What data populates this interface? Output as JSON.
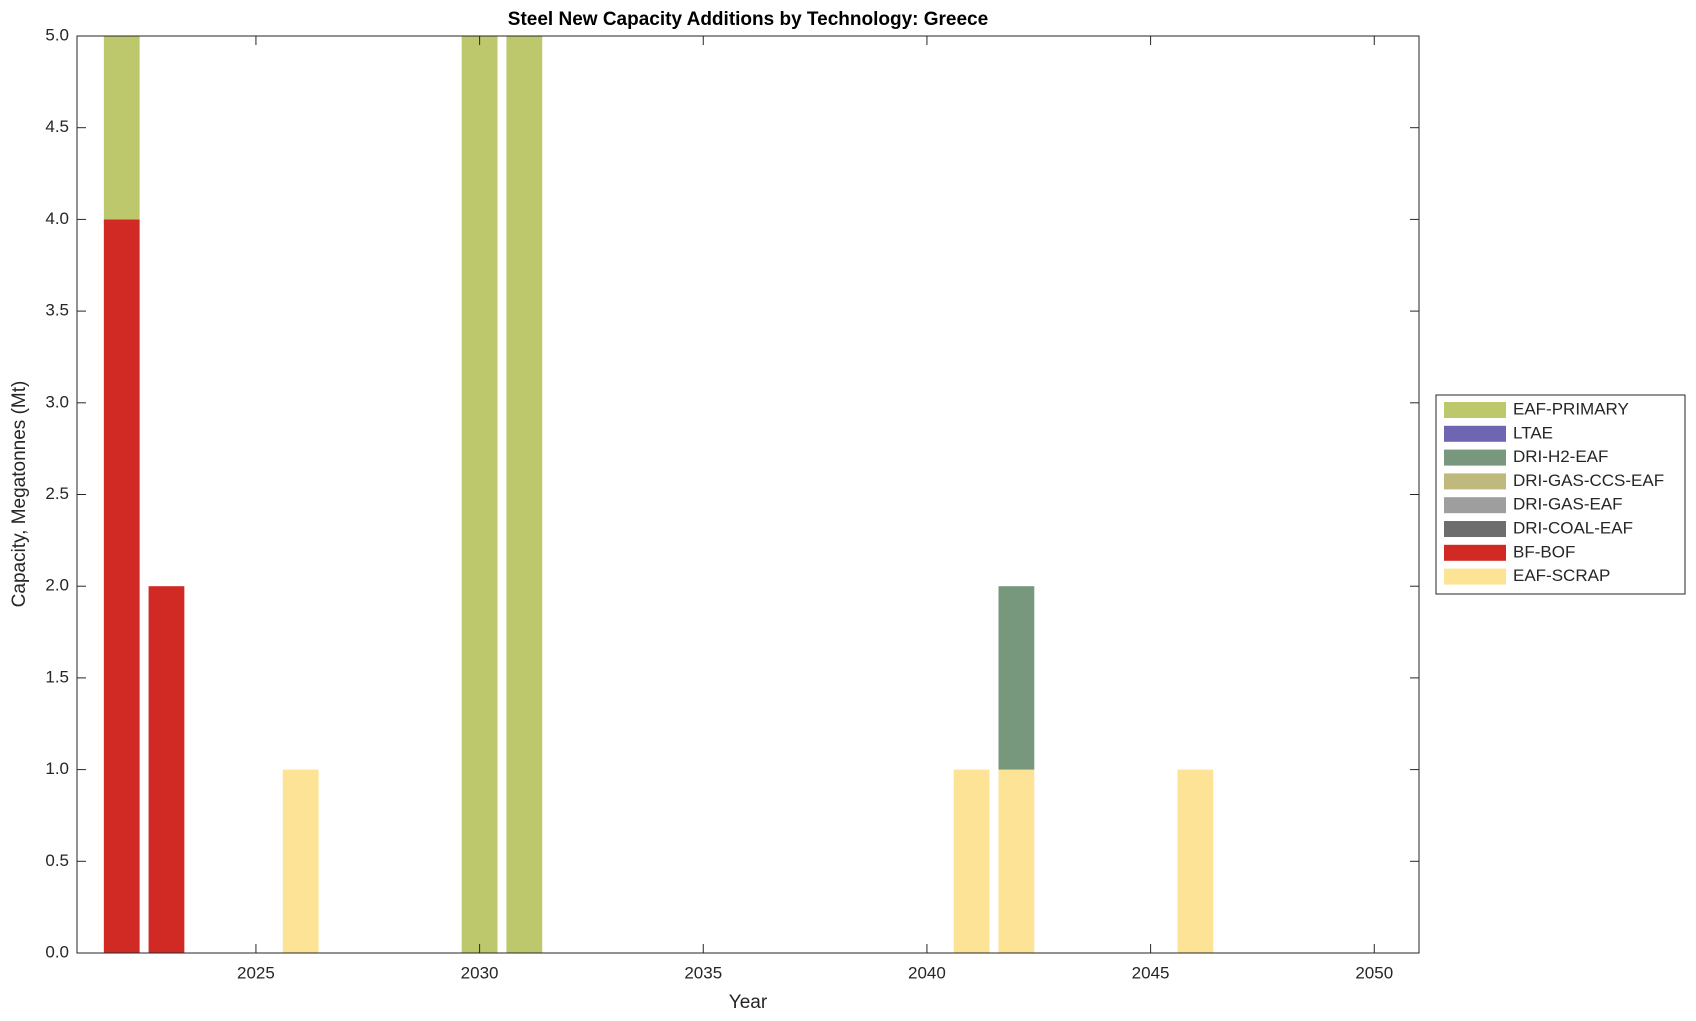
{
  "chart_data": {
    "type": "bar",
    "stacked": true,
    "title": "Steel New Capacity Additions by Technology: Greece",
    "x_label": "Year",
    "y_label": "Capacity, Megatonnes (Mt)",
    "x": [
      2022,
      2023,
      2026,
      2030,
      2031,
      2041,
      2042,
      2046
    ],
    "series": [
      {
        "name": "EAF-PRIMARY",
        "color": "#bdc76b",
        "values": [
          1,
          0,
          0,
          5,
          5,
          0,
          0,
          0
        ]
      },
      {
        "name": "LTAE",
        "color": "#6f66b3",
        "values": [
          0,
          0,
          0,
          0,
          0,
          0,
          0,
          0
        ]
      },
      {
        "name": "DRI-H2-EAF",
        "color": "#77987d",
        "values": [
          0,
          0,
          0,
          0,
          0,
          0,
          1,
          0
        ]
      },
      {
        "name": "DRI-GAS-CCS-EAF",
        "color": "#bfb97d",
        "values": [
          0,
          0,
          0,
          0,
          0,
          0,
          0,
          0
        ]
      },
      {
        "name": "DRI-GAS-EAF",
        "color": "#9e9e9e",
        "values": [
          0,
          0,
          0,
          0,
          0,
          0,
          0,
          0
        ]
      },
      {
        "name": "DRI-COAL-EAF",
        "color": "#6d6d6d",
        "values": [
          0,
          0,
          0,
          0,
          0,
          0,
          0,
          0
        ]
      },
      {
        "name": "BF-BOF",
        "color": "#d12a25",
        "values": [
          4,
          2,
          0,
          0,
          0,
          0,
          0,
          0
        ]
      },
      {
        "name": "EAF-SCRAP",
        "color": "#fde395",
        "values": [
          0,
          0,
          1,
          0,
          0,
          1,
          1,
          1
        ]
      }
    ],
    "xlim": [
      2021,
      2051
    ],
    "xticks": [
      2025,
      2030,
      2035,
      2040,
      2045,
      2050
    ],
    "ylim": [
      0,
      5
    ],
    "yticks": [
      {
        "value": 0,
        "label": "0.0"
      },
      0.5,
      {
        "value": 1,
        "label": "1.0"
      },
      1.5,
      {
        "value": 2,
        "label": "2.0"
      },
      2.5,
      {
        "value": 3,
        "label": "3.0"
      },
      3.5,
      {
        "value": 4,
        "label": "4.0"
      },
      4.5,
      {
        "value": 5,
        "label": "5.0"
      }
    ],
    "legend": "right",
    "grid": false
  }
}
